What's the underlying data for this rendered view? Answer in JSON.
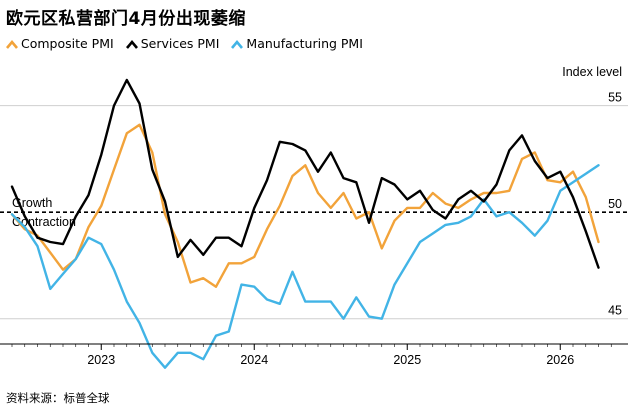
{
  "title": "欧元区私营部门4月份出现萎缩",
  "source": "资料来源：标普全球",
  "colors": {
    "composite": "#f2a33a",
    "services": "#000000",
    "manufacturing": "#42b4e6"
  },
  "chart_data": {
    "type": "line",
    "title": "欧元区私营部门4月份出现萎缩",
    "ylabel": "Index level",
    "ylim": [
      44,
      57
    ],
    "yticks": [
      "45",
      "50",
      "55"
    ],
    "xticks": [
      "2023",
      "2024",
      "2025",
      "2026"
    ],
    "x_start": "2022-06",
    "reference_line": {
      "value": 50,
      "label_above": "Growth",
      "label_below": "Contraction"
    },
    "grid": true,
    "legend": "top-left",
    "series": [
      {
        "name": "Composite PMI",
        "color": "#f2a33a",
        "values": [
          49.9,
          49.2,
          48.9,
          48.1,
          47.3,
          47.8,
          49.3,
          50.3,
          52.0,
          53.7,
          54.1,
          52.8,
          49.9,
          48.6,
          46.7,
          46.9,
          46.5,
          47.6,
          47.6,
          47.9,
          49.2,
          50.3,
          51.7,
          52.2,
          50.9,
          50.2,
          50.9,
          49.7,
          50.0,
          48.3,
          49.6,
          50.2,
          50.2,
          50.9,
          50.4,
          50.2,
          50.6,
          50.9,
          50.9,
          51.0,
          52.5,
          52.8,
          51.5,
          51.4,
          51.9,
          50.7,
          48.6
        ]
      },
      {
        "name": "Services PMI",
        "color": "#000000",
        "values": [
          51.2,
          49.8,
          48.8,
          48.6,
          48.5,
          49.8,
          50.8,
          52.7,
          55.0,
          56.2,
          55.1,
          52.0,
          50.5,
          47.9,
          48.7,
          48.0,
          48.8,
          48.8,
          48.4,
          50.2,
          51.5,
          53.3,
          53.2,
          52.9,
          51.9,
          52.8,
          51.6,
          51.4,
          49.5,
          51.6,
          51.3,
          50.6,
          51.0,
          50.1,
          49.7,
          50.6,
          51.0,
          50.5,
          51.3,
          52.9,
          53.6,
          52.4,
          51.6,
          51.9,
          50.7,
          49.1,
          47.4
        ]
      },
      {
        "name": "Manufacturing PMI",
        "color": "#42b4e6",
        "values": [
          49.9,
          49.3,
          48.4,
          46.4,
          47.1,
          47.8,
          48.8,
          48.5,
          47.3,
          45.8,
          44.8,
          43.4,
          42.7,
          43.4,
          43.4,
          43.1,
          44.2,
          44.4,
          46.6,
          46.5,
          45.9,
          45.7,
          47.2,
          45.8,
          45.8,
          45.8,
          45.0,
          46.0,
          45.1,
          45.0,
          46.6,
          47.6,
          48.6,
          49.0,
          49.4,
          49.5,
          49.8,
          50.6,
          49.8,
          50.0,
          49.5,
          48.9,
          49.6,
          51.0,
          51.4,
          51.8,
          52.2
        ]
      }
    ]
  }
}
